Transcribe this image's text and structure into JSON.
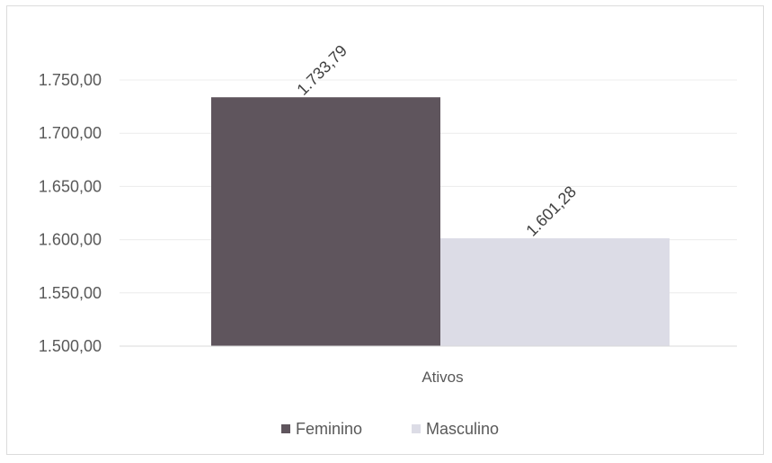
{
  "chart_data": {
    "type": "bar",
    "categories": [
      "Ativos"
    ],
    "series": [
      {
        "name": "Feminino",
        "values": [
          1733.79
        ],
        "label": "1.733,79",
        "color": "#5f555d"
      },
      {
        "name": "Masculino",
        "values": [
          1601.28
        ],
        "label": "1.601,28",
        "color": "#dcdce6"
      }
    ],
    "ylim": [
      1500,
      1750
    ],
    "yticks": [
      {
        "value": 1500,
        "label": "1.500,00"
      },
      {
        "value": 1550,
        "label": "1.550,00"
      },
      {
        "value": 1600,
        "label": "1.600,00"
      },
      {
        "value": 1650,
        "label": "1.650,00"
      },
      {
        "value": 1700,
        "label": "1.700,00"
      },
      {
        "value": 1750,
        "label": "1.750,00"
      }
    ],
    "grid": true,
    "legend": "bottom",
    "gridColor": "#ececec"
  }
}
